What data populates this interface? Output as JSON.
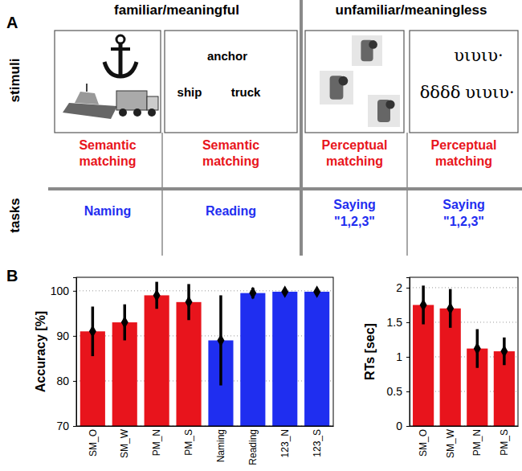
{
  "panel_a": {
    "label": "A",
    "groups": [
      "familiar/meaningful",
      "unfamiliar/meaningless"
    ],
    "row_labels": [
      "stimuli",
      "tasks"
    ],
    "columns": [
      {
        "stimulus_text": [],
        "task1": [
          "Semantic",
          "matching"
        ],
        "task2": [
          "Naming"
        ]
      },
      {
        "stimulus_text": [
          "anchor",
          "ship",
          "truck"
        ],
        "task1": [
          "Semantic",
          "matching"
        ],
        "task2": [
          "Reading"
        ]
      },
      {
        "stimulus_text": [],
        "task1": [
          "Perceptual",
          "matching"
        ],
        "task2": [
          "Saying",
          "\"1,2,3\""
        ]
      },
      {
        "stimulus_text": [
          "υιυιυ·",
          "δδδδ",
          "υιυιυ·"
        ],
        "task1": [
          "Perceptual",
          "matching"
        ],
        "task2": [
          "Saying",
          "\"1,2,3\""
        ]
      }
    ]
  },
  "panel_b": {
    "label": "B"
  },
  "chart_data": [
    {
      "type": "bar",
      "y_label": "Accuracy [%]",
      "categories": [
        "SM_O",
        "SM_W",
        "PM_N",
        "PM_S",
        "Naming",
        "Reading",
        "123_N",
        "123_S"
      ],
      "values": [
        91,
        93,
        99,
        97.5,
        89,
        99.5,
        99.8,
        99.8
      ],
      "errors": [
        5.5,
        4,
        3,
        4,
        10,
        1.2,
        0.6,
        0.7
      ],
      "colors": [
        "#e8141c",
        "#e8141c",
        "#e8141c",
        "#e8141c",
        "#1f2ef0",
        "#1f2ef0",
        "#1f2ef0",
        "#1f2ef0"
      ],
      "ylim": [
        70,
        103
      ],
      "yticks": [
        70,
        80,
        90,
        100
      ],
      "grid": true,
      "marker": "diamond"
    },
    {
      "type": "bar",
      "y_label": "RTs [sec]",
      "categories": [
        "SM_O",
        "SM_W",
        "PM_N",
        "PM_S"
      ],
      "values": [
        1.75,
        1.7,
        1.12,
        1.08
      ],
      "errors": [
        0.28,
        0.28,
        0.28,
        0.2
      ],
      "colors": [
        "#e8141c",
        "#e8141c",
        "#e8141c",
        "#e8141c"
      ],
      "ylim": [
        0,
        2.15
      ],
      "yticks": [
        0,
        0.5,
        1,
        1.5,
        2
      ],
      "grid": true,
      "marker": "diamond"
    }
  ]
}
